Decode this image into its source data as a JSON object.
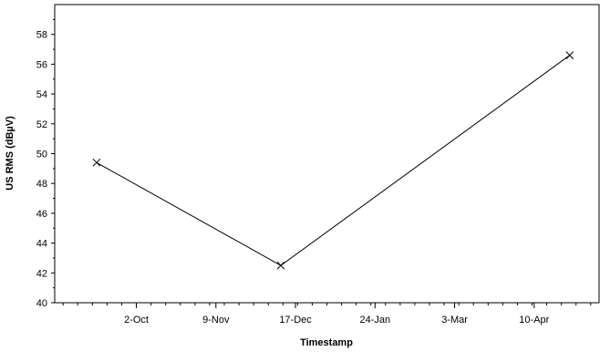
{
  "chart_data": {
    "type": "line",
    "title": "",
    "xlabel": "Timestamp",
    "ylabel": "US RMS (dBµV)",
    "x_axis": {
      "scale": "time",
      "range": [
        "2020-08-24",
        "2021-05-11"
      ],
      "ticks": [
        {
          "date": "2020-10-02",
          "label": "2-Oct"
        },
        {
          "date": "2020-11-09",
          "label": "9-Nov"
        },
        {
          "date": "2020-12-17",
          "label": "17-Dec"
        },
        {
          "date": "2021-01-24",
          "label": "24-Jan"
        },
        {
          "date": "2021-03-03",
          "label": "3-Mar"
        },
        {
          "date": "2021-04-10",
          "label": "10-Apr"
        }
      ]
    },
    "y_axis": {
      "range": [
        40,
        60
      ],
      "ticks": [
        40,
        42,
        44,
        46,
        48,
        50,
        52,
        54,
        56,
        58
      ]
    },
    "grid": false,
    "legend": "none",
    "series": [
      {
        "color": "#000000",
        "marker": "x",
        "points": [
          {
            "x": "2020-09-13",
            "y": 49.4
          },
          {
            "x": "2020-12-10",
            "y": 42.5
          },
          {
            "x": "2021-04-27",
            "y": 56.6
          }
        ]
      }
    ]
  }
}
